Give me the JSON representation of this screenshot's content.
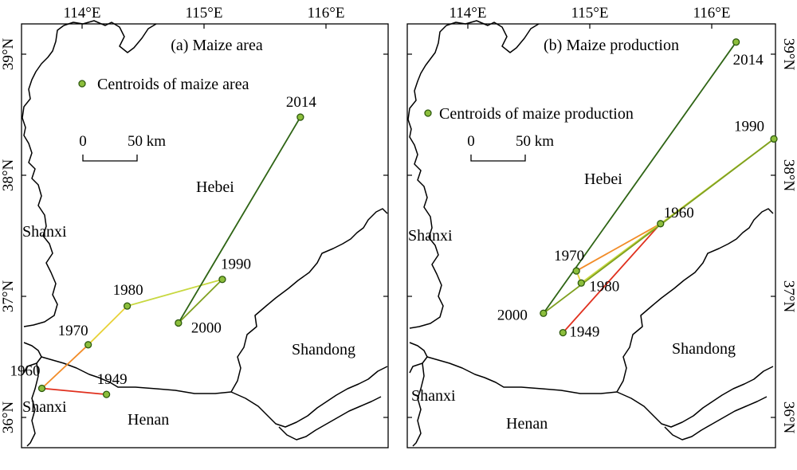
{
  "colors": {
    "path_1949_1960": "#e0301e",
    "path_1960_1970": "#f28c28",
    "path_1970_1980": "#e8d23a",
    "path_1980_1990": "#c8d840",
    "path_1990_2000": "#7fa020",
    "path_2000_2014": "#2e6414",
    "centroid_fill": "#8cbe3c"
  },
  "axes": {
    "lon_ticks": [
      "114°E",
      "115°E",
      "116°E"
    ],
    "lat_ticks": [
      "39°N",
      "38°N",
      "37°N",
      "36°N"
    ]
  },
  "panels": [
    {
      "title": "(a) Maize area",
      "legend": "Centroids of maize area",
      "scalebar": {
        "zero": "0",
        "end": "50 km"
      },
      "regions": {
        "hebei": "Hebei",
        "shanxi_north": "Shanxi",
        "shanxi_south": "Shanxi",
        "henan": "Henan",
        "shandong": "Shandong"
      },
      "points": [
        {
          "year": "1949",
          "lon": 114.2,
          "lat": 36.19
        },
        {
          "year": "1960",
          "lon": 113.67,
          "lat": 36.24
        },
        {
          "year": "1970",
          "lon": 114.05,
          "lat": 36.6
        },
        {
          "year": "1980",
          "lon": 114.37,
          "lat": 36.92
        },
        {
          "year": "1990",
          "lon": 115.15,
          "lat": 37.14
        },
        {
          "year": "2000",
          "lon": 114.79,
          "lat": 36.78
        },
        {
          "year": "2014",
          "lon": 115.79,
          "lat": 38.48
        }
      ]
    },
    {
      "title": "(b) Maize production",
      "legend": "Centroids of maize production",
      "scalebar": {
        "zero": "0",
        "end": "50 km"
      },
      "regions": {
        "hebei": "Hebei",
        "shanxi_north": "Shanxi",
        "shanxi_south": "Shanxi",
        "henan": "Henan",
        "shandong": "Shandong"
      },
      "points": [
        {
          "year": "1949",
          "lon": 114.78,
          "lat": 36.7
        },
        {
          "year": "1960",
          "lon": 115.58,
          "lat": 37.6
        },
        {
          "year": "1970",
          "lon": 114.89,
          "lat": 37.21
        },
        {
          "year": "1980",
          "lon": 114.93,
          "lat": 37.11
        },
        {
          "year": "1990",
          "lon": 116.51,
          "lat": 38.3
        },
        {
          "year": "2000",
          "lon": 114.62,
          "lat": 36.86
        },
        {
          "year": "2014",
          "lon": 116.2,
          "lat": 39.1
        }
      ]
    }
  ]
}
